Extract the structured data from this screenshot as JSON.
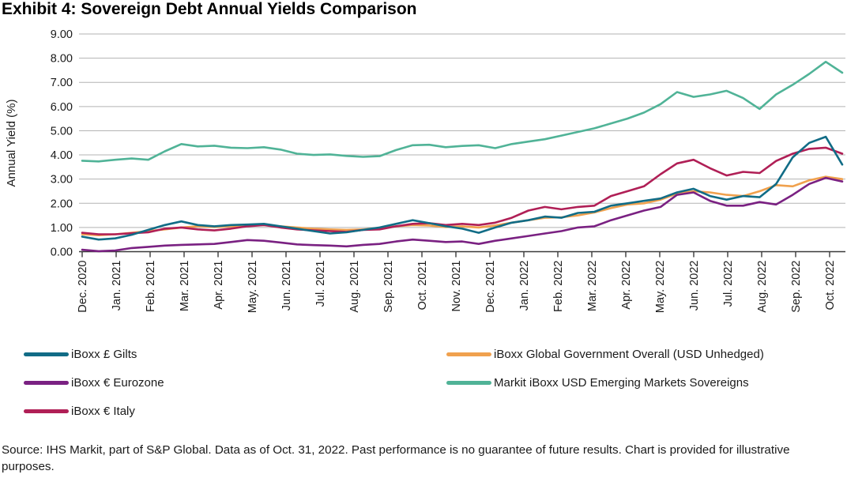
{
  "chart_data": {
    "type": "line",
    "title": "Exhibit 4: Sovereign Debt Annual Yields Comparison",
    "ylabel": "Annual Yield (%)",
    "ylim": [
      0,
      9
    ],
    "ytick_interval": 1,
    "ytick_decimals": 2,
    "grid": "horizontal",
    "legend_position": "bottom, two columns",
    "categories": [
      "Dec. 2020",
      "Jan. 2021",
      "Feb. 2021",
      "Mar. 2021",
      "Apr. 2021",
      "May. 2021",
      "Jun. 2021",
      "Jul. 2021",
      "Aug. 2021",
      "Sep. 2021",
      "Oct. 2021",
      "Nov. 2021",
      "Dec. 2021",
      "Jan. 2022",
      "Feb. 2022",
      "Mar. 2022",
      "Apr. 2022",
      "May. 2022",
      "Jun. 2022",
      "Jul. 2022",
      "Aug. 2022",
      "Sep. 2022",
      "Oct. 2022"
    ],
    "points_per_month": 2,
    "series": [
      {
        "name": "iBoxx £ Gilts",
        "color": "#116c86",
        "values": [
          0.62,
          0.5,
          0.55,
          0.7,
          0.9,
          1.1,
          1.25,
          1.1,
          1.05,
          1.1,
          1.12,
          1.15,
          1.05,
          0.95,
          0.85,
          0.75,
          0.8,
          0.9,
          1.0,
          1.15,
          1.3,
          1.18,
          1.05,
          0.95,
          0.78,
          1.0,
          1.2,
          1.3,
          1.45,
          1.4,
          1.6,
          1.65,
          1.9,
          2.0,
          2.1,
          2.2,
          2.45,
          2.6,
          2.3,
          2.15,
          2.3,
          2.25,
          2.8,
          3.9,
          4.5,
          4.75,
          3.6
        ]
      },
      {
        "name": "iBoxx € Eurozone",
        "color": "#7a2182",
        "values": [
          0.08,
          0.02,
          0.05,
          0.15,
          0.2,
          0.25,
          0.28,
          0.3,
          0.32,
          0.4,
          0.48,
          0.45,
          0.38,
          0.3,
          0.27,
          0.25,
          0.22,
          0.28,
          0.32,
          0.42,
          0.5,
          0.45,
          0.4,
          0.42,
          0.32,
          0.45,
          0.55,
          0.65,
          0.75,
          0.85,
          1.0,
          1.05,
          1.3,
          1.5,
          1.7,
          1.85,
          2.35,
          2.45,
          2.1,
          1.9,
          1.9,
          2.05,
          1.95,
          2.35,
          2.8,
          3.05,
          2.9
        ]
      },
      {
        "name": "iBoxx € Italy",
        "color": "#b01f56",
        "values": [
          0.78,
          0.72,
          0.72,
          0.76,
          0.8,
          0.95,
          1.0,
          0.92,
          0.88,
          0.95,
          1.05,
          1.1,
          1.0,
          0.92,
          0.88,
          0.85,
          0.82,
          0.9,
          0.92,
          1.05,
          1.15,
          1.18,
          1.1,
          1.15,
          1.1,
          1.2,
          1.4,
          1.7,
          1.85,
          1.75,
          1.85,
          1.9,
          2.3,
          2.5,
          2.7,
          3.2,
          3.65,
          3.8,
          3.45,
          3.15,
          3.3,
          3.25,
          3.75,
          4.05,
          4.25,
          4.3,
          4.05
        ]
      },
      {
        "name": "iBoxx Global Government Overall (USD Unhedged)",
        "color": "#f0a14e",
        "values": [
          0.72,
          0.68,
          0.72,
          0.78,
          0.85,
          0.92,
          1.0,
          1.05,
          1.02,
          1.05,
          1.08,
          1.1,
          1.05,
          1.0,
          0.95,
          0.92,
          0.9,
          0.92,
          0.98,
          1.05,
          1.1,
          1.08,
          1.02,
          1.05,
          1.0,
          1.08,
          1.2,
          1.3,
          1.4,
          1.42,
          1.5,
          1.62,
          1.8,
          1.95,
          2.0,
          2.15,
          2.4,
          2.5,
          2.45,
          2.35,
          2.3,
          2.5,
          2.75,
          2.7,
          2.95,
          3.1,
          3.0
        ]
      },
      {
        "name": "Markit iBoxx USD Emerging Markets Sovereigns",
        "color": "#50b397",
        "values": [
          3.76,
          3.73,
          3.8,
          3.85,
          3.8,
          4.15,
          4.45,
          4.35,
          4.38,
          4.3,
          4.28,
          4.32,
          4.22,
          4.05,
          4.0,
          4.02,
          3.96,
          3.92,
          3.95,
          4.2,
          4.4,
          4.42,
          4.32,
          4.37,
          4.4,
          4.28,
          4.45,
          4.55,
          4.65,
          4.8,
          4.95,
          5.1,
          5.3,
          5.5,
          5.75,
          6.1,
          6.6,
          6.4,
          6.5,
          6.65,
          6.35,
          5.9,
          6.5,
          6.9,
          7.35,
          7.85,
          7.4
        ]
      }
    ],
    "legend_columns": [
      [
        0,
        1,
        2
      ],
      [
        3,
        4
      ]
    ],
    "colors": {
      "gridline": "#b3b3b3",
      "axis": "#3a3a3a",
      "tick_text": "#1a1a1a"
    }
  },
  "source_note": "Source: IHS Markit, part of S&P Global. Data as of Oct. 31, 2022. Past performance is no guarantee of future results. Chart is provided for illustrative purposes."
}
